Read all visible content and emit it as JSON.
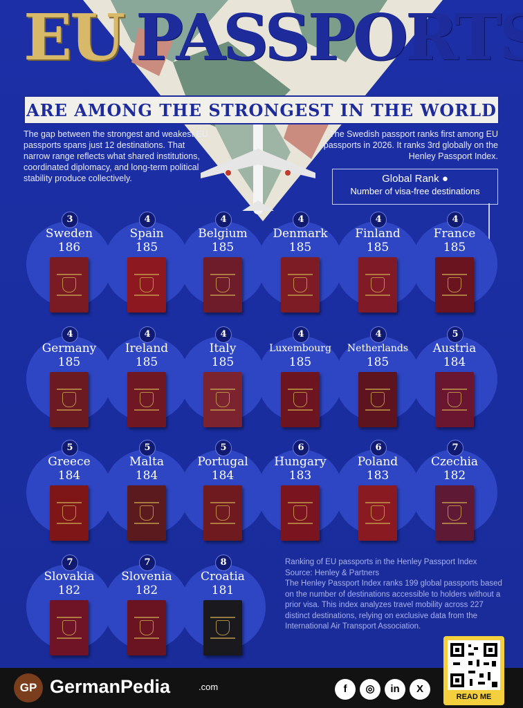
{
  "title": {
    "part1": "EU",
    "part2": "PASSPORTS",
    "subtitle": "ARE AMONG THE STRONGEST IN THE WORLD"
  },
  "intro_left": "The gap between the strongest and weakest EU passports spans just 12 destinations. That narrow range reflects what shared institutions, coordinated diplomacy, and long-term political stability produce collectively.",
  "intro_right": "The Swedish passport ranks first among EU passports in 2026. It ranks 3rd globally on the Henley Passport Index.",
  "legend": {
    "line1": "Global Rank",
    "line2": "Number of visa-free destinations"
  },
  "countries": [
    {
      "name": "Sweden",
      "rank": "3",
      "value": "186",
      "color": "#7a1a22"
    },
    {
      "name": "Spain",
      "rank": "4",
      "value": "185",
      "color": "#8e1820"
    },
    {
      "name": "Belgium",
      "rank": "4",
      "value": "185",
      "color": "#6e1c2a"
    },
    {
      "name": "Denmark",
      "rank": "4",
      "value": "185",
      "color": "#7d1c24"
    },
    {
      "name": "Finland",
      "rank": "4",
      "value": "185",
      "color": "#7f1a26"
    },
    {
      "name": "France",
      "rank": "4",
      "value": "185",
      "color": "#6a1420"
    },
    {
      "name": "Germany",
      "rank": "4",
      "value": "185",
      "color": "#6b1a22"
    },
    {
      "name": "Ireland",
      "rank": "4",
      "value": "185",
      "color": "#6f1722"
    },
    {
      "name": "Italy",
      "rank": "4",
      "value": "185",
      "color": "#7b2430"
    },
    {
      "name": "Luxembourg",
      "rank": "4",
      "value": "185",
      "color": "#6c1420"
    },
    {
      "name": "Netherlands",
      "rank": "4",
      "value": "185",
      "color": "#5e141e"
    },
    {
      "name": "Austria",
      "rank": "5",
      "value": "184",
      "color": "#6a1630"
    },
    {
      "name": "Greece",
      "rank": "5",
      "value": "184",
      "color": "#7e1618"
    },
    {
      "name": "Malta",
      "rank": "5",
      "value": "184",
      "color": "#5a1a1e"
    },
    {
      "name": "Portugal",
      "rank": "5",
      "value": "184",
      "color": "#6e1a1e"
    },
    {
      "name": "Hungary",
      "rank": "6",
      "value": "183",
      "color": "#7a1520"
    },
    {
      "name": "Poland",
      "rank": "6",
      "value": "183",
      "color": "#8a1a22"
    },
    {
      "name": "Czechia",
      "rank": "7",
      "value": "182",
      "color": "#5e1a34"
    },
    {
      "name": "Slovakia",
      "rank": "7",
      "value": "182",
      "color": "#6e1426"
    },
    {
      "name": "Slovenia",
      "rank": "7",
      "value": "182",
      "color": "#6a1422"
    },
    {
      "name": "Croatia",
      "rank": "8",
      "value": "181",
      "color": "#1a1a1e"
    }
  ],
  "footnote": {
    "line1": "Ranking of EU passports in the Henley Passport Index",
    "line2": "Source: Henley & Partners",
    "body": "The Henley Passport Index ranks 199 global passports based on the number of destinations accessible to holders without a prior visa. This index analyzes travel mobility across 227 distinct destinations, relying on exclusive data from the International Air Transport Association."
  },
  "footer": {
    "logo": "GP",
    "brand": "GermanPedia",
    "brand_suffix": ".com",
    "social": [
      {
        "icon": "facebook-icon",
        "glyph": "f"
      },
      {
        "icon": "instagram-icon",
        "glyph": "◎"
      },
      {
        "icon": "linkedin-icon",
        "glyph": "in"
      },
      {
        "icon": "x-icon",
        "glyph": "X"
      }
    ],
    "qr_label": "READ ME"
  }
}
